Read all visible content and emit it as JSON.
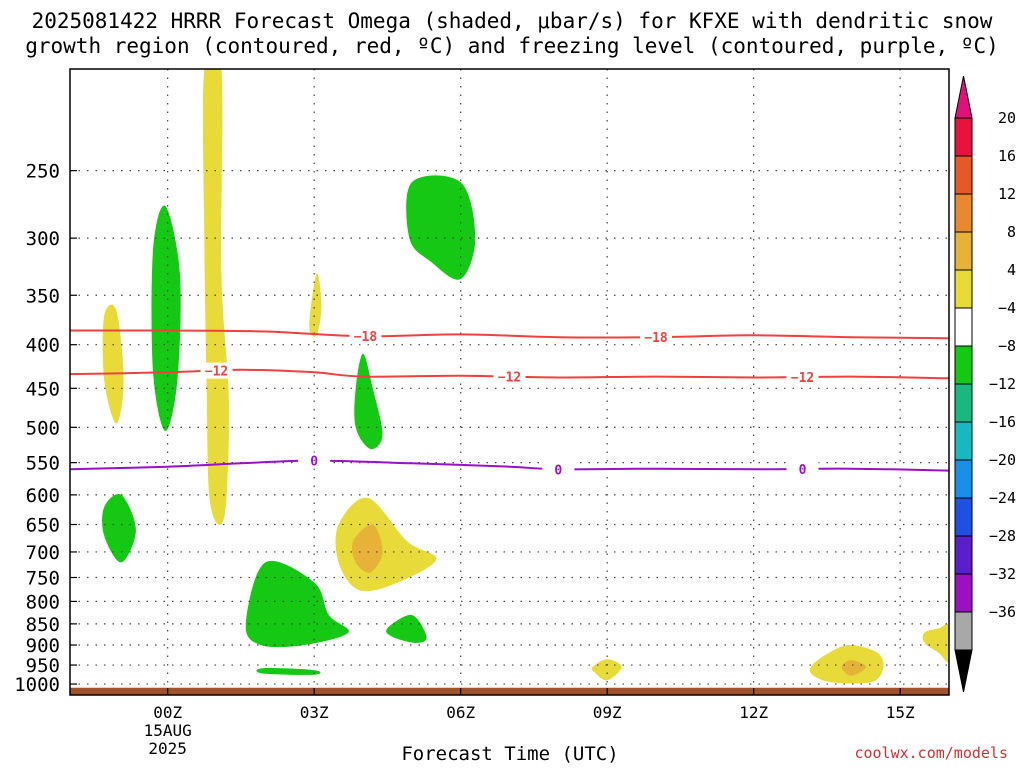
{
  "title_line1": "2025081422 HRRR Forecast Omega (shaded, μbar/s) for KFXE with dendritic snow",
  "title_line2": "growth region (contoured, red, ºC) and freezing level (contoured, purple, ºC)",
  "credit": "coolwx.com/models",
  "chart_data": {
    "type": "heatmap",
    "xlabel": "Forecast Time (UTC)",
    "ylabel": "",
    "x_range_hours": [
      -2,
      16
    ],
    "y_range_hPa": [
      1030,
      190
    ],
    "y_log_scale": true,
    "grid": true,
    "x_ticks": [
      {
        "hour": 0,
        "label": "00Z",
        "sub": [
          "15AUG",
          "2025"
        ]
      },
      {
        "hour": 3,
        "label": "03Z"
      },
      {
        "hour": 6,
        "label": "06Z"
      },
      {
        "hour": 9,
        "label": "09Z"
      },
      {
        "hour": 12,
        "label": "12Z"
      },
      {
        "hour": 15,
        "label": "15Z"
      }
    ],
    "y_ticks": [
      250,
      300,
      350,
      400,
      450,
      500,
      550,
      600,
      650,
      700,
      750,
      800,
      850,
      900,
      950,
      1000
    ],
    "colorbar": {
      "labels": [
        "20",
        "16",
        "12",
        "8",
        "4",
        "−4",
        "−8",
        "−12",
        "−16",
        "−20",
        "−24",
        "−28",
        "−32",
        "−36"
      ],
      "colors": [
        "#e8123c",
        "#e35a28",
        "#e8892e",
        "#e7b238",
        "#e8da38",
        "#ffffff",
        "#14c814",
        "#18b880",
        "#18b8c0",
        "#1890e8",
        "#2050e0",
        "#5820c8",
        "#9b10c0",
        "#a8a8a8"
      ],
      "top_arrow_color": "#e0127a",
      "bottom_arrow_color": "#000000"
    },
    "omega_regions": [
      {
        "color": "#e8da38",
        "points": [
          [
            -1.3,
            370
          ],
          [
            -1.05,
            365
          ],
          [
            -0.9,
            440
          ],
          [
            -1.05,
            495
          ],
          [
            -1.3,
            440
          ]
        ]
      },
      {
        "color": "#14c814",
        "points": [
          [
            -0.3,
            310
          ],
          [
            -0.05,
            275
          ],
          [
            0.25,
            330
          ],
          [
            0.2,
            440
          ],
          [
            -0.05,
            505
          ],
          [
            -0.3,
            430
          ]
        ]
      },
      {
        "color": "#e8da38",
        "points": [
          [
            0.75,
            190
          ],
          [
            1.1,
            190
          ],
          [
            1.1,
            330
          ],
          [
            1.25,
            460
          ],
          [
            1.2,
            610
          ],
          [
            1.05,
            650
          ],
          [
            0.85,
            600
          ],
          [
            0.8,
            450
          ],
          [
            0.75,
            300
          ]
        ]
      },
      {
        "color": "#e8da38",
        "points": [
          [
            2.9,
            380
          ],
          [
            3.05,
            330
          ],
          [
            3.15,
            360
          ],
          [
            3.05,
            390
          ]
        ]
      },
      {
        "color": "#14c814",
        "points": [
          [
            4.0,
            410
          ],
          [
            4.2,
            450
          ],
          [
            4.4,
            510
          ],
          [
            4.15,
            530
          ],
          [
            3.85,
            500
          ],
          [
            3.85,
            450
          ]
        ]
      },
      {
        "color": "#14c814",
        "points": [
          [
            5.0,
            258
          ],
          [
            6.0,
            258
          ],
          [
            6.3,
            300
          ],
          [
            6.0,
            335
          ],
          [
            5.4,
            320
          ],
          [
            4.95,
            300
          ]
        ]
      },
      {
        "color": "#14c814",
        "points": [
          [
            -1.3,
            620
          ],
          [
            -0.95,
            600
          ],
          [
            -0.65,
            660
          ],
          [
            -0.95,
            720
          ],
          [
            -1.3,
            670
          ]
        ]
      },
      {
        "color": "#e8da38",
        "points": [
          [
            3.5,
            650
          ],
          [
            4.1,
            605
          ],
          [
            4.9,
            680
          ],
          [
            5.5,
            715
          ],
          [
            4.6,
            765
          ],
          [
            3.9,
            775
          ],
          [
            3.5,
            720
          ]
        ]
      },
      {
        "color": "#e7b238",
        "points": [
          [
            3.8,
            680
          ],
          [
            4.2,
            650
          ],
          [
            4.4,
            700
          ],
          [
            4.15,
            740
          ],
          [
            3.85,
            720
          ]
        ]
      },
      {
        "color": "#14c814",
        "points": [
          [
            2.0,
            720
          ],
          [
            3.0,
            760
          ],
          [
            3.3,
            830
          ],
          [
            3.7,
            870
          ],
          [
            2.8,
            900
          ],
          [
            1.9,
            900
          ],
          [
            1.6,
            850
          ]
        ]
      },
      {
        "color": "#14c814",
        "points": [
          [
            4.5,
            860
          ],
          [
            5.0,
            830
          ],
          [
            5.3,
            880
          ],
          [
            5.1,
            895
          ],
          [
            4.6,
            880
          ]
        ]
      },
      {
        "color": "#14c814",
        "points": [
          [
            1.95,
            958
          ],
          [
            3.0,
            963
          ],
          [
            3.0,
            975
          ],
          [
            1.95,
            972
          ]
        ]
      },
      {
        "color": "#e8da38",
        "points": [
          [
            8.7,
            955
          ],
          [
            9.0,
            935
          ],
          [
            9.3,
            955
          ],
          [
            9.0,
            990
          ],
          [
            8.75,
            970
          ]
        ]
      },
      {
        "color": "#e8da38",
        "points": [
          [
            13.2,
            950
          ],
          [
            13.6,
            915
          ],
          [
            14.0,
            900
          ],
          [
            14.55,
            920
          ],
          [
            14.65,
            960
          ],
          [
            14.4,
            995
          ],
          [
            13.6,
            995
          ],
          [
            13.2,
            975
          ]
        ]
      },
      {
        "color": "#e7b238",
        "points": [
          [
            13.8,
            955
          ],
          [
            14.0,
            938
          ],
          [
            14.3,
            955
          ],
          [
            14.0,
            978
          ]
        ]
      },
      {
        "color": "#e8da38",
        "points": [
          [
            15.5,
            870
          ],
          [
            15.8,
            860
          ],
          [
            16,
            855
          ],
          [
            16,
            940
          ],
          [
            15.8,
            920
          ],
          [
            15.5,
            895
          ]
        ]
      }
    ],
    "contours": [
      {
        "label": "−18",
        "color": "#f04040",
        "label_x": [
          4.05,
          10.0
        ],
        "points": [
          [
            -2,
            385
          ],
          [
            0,
            385
          ],
          [
            2,
            386
          ],
          [
            4,
            391
          ],
          [
            6,
            389
          ],
          [
            8,
            392
          ],
          [
            10,
            392
          ],
          [
            12,
            390
          ],
          [
            14,
            392
          ],
          [
            16,
            393
          ]
        ]
      },
      {
        "label": "−12",
        "color": "#f04040",
        "label_x": [
          1.0,
          7.0,
          13.0
        ],
        "points": [
          [
            -2,
            433
          ],
          [
            0,
            431
          ],
          [
            1.5,
            428
          ],
          [
            3,
            431
          ],
          [
            4,
            436
          ],
          [
            6,
            435
          ],
          [
            8,
            437
          ],
          [
            10,
            436
          ],
          [
            12,
            437
          ],
          [
            14,
            436
          ],
          [
            16,
            438
          ]
        ]
      },
      {
        "label": "0",
        "color": "#9a10c8",
        "label_x": [
          3.0,
          8.0,
          13.0
        ],
        "points": [
          [
            -2,
            560
          ],
          [
            0,
            556
          ],
          [
            1.5,
            551
          ],
          [
            3,
            547
          ],
          [
            5,
            551
          ],
          [
            7,
            556
          ],
          [
            8,
            560
          ],
          [
            10,
            559
          ],
          [
            12,
            560
          ],
          [
            14,
            559
          ],
          [
            16,
            562
          ]
        ]
      }
    ],
    "surface_bar": {
      "color": "#a0522d",
      "top_hPa": 1010,
      "bottom_hPa": 1030
    }
  }
}
